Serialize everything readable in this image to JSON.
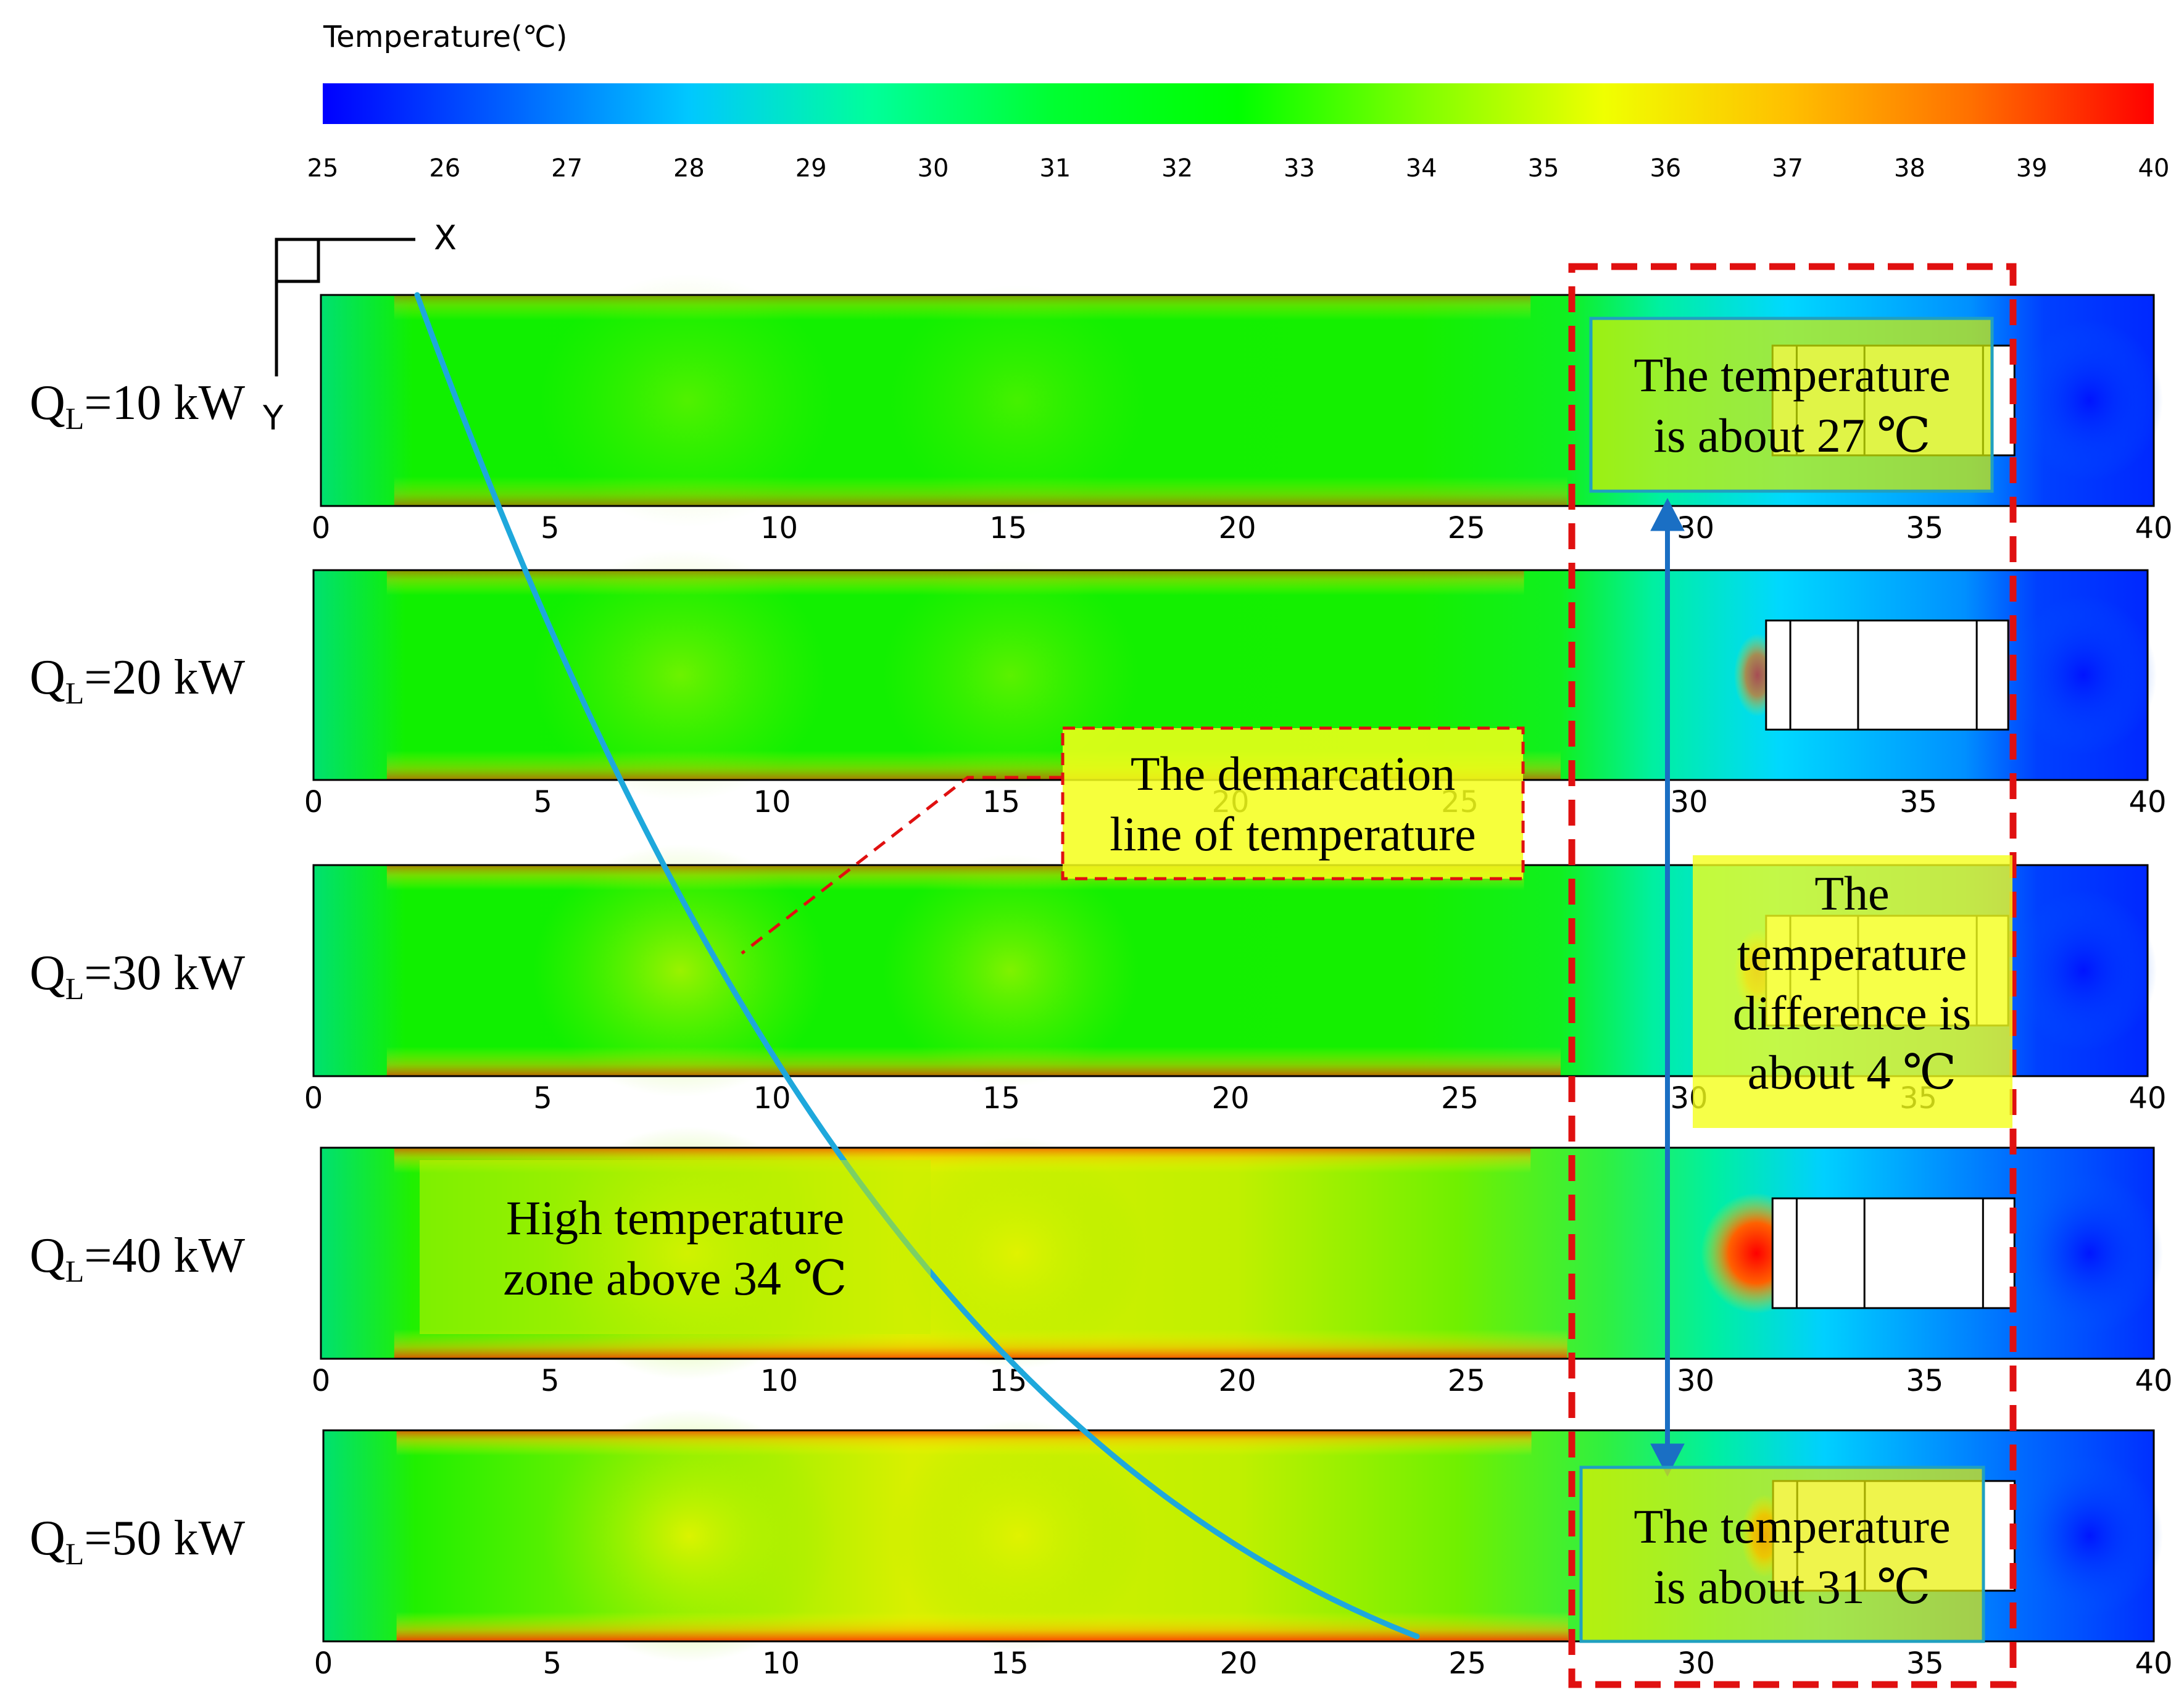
{
  "colorbar": {
    "title": "Temperature(℃)",
    "ticks": [
      "25",
      "26",
      "27",
      "28",
      "29",
      "30",
      "31",
      "32",
      "33",
      "34",
      "35",
      "36",
      "37",
      "38",
      "39",
      "40"
    ],
    "stops": [
      "#0000ff",
      "#0060ff",
      "#00c8ff",
      "#00ff9a",
      "#00ff30",
      "#00ff00",
      "#80ff00",
      "#f0ff00",
      "#ffc000",
      "#ff7000",
      "#ff0000"
    ]
  },
  "axes": {
    "x_label": "X",
    "y_label": "Y"
  },
  "x_axis_ticks": [
    "0",
    "5",
    "10",
    "15",
    "20",
    "25",
    "30",
    "35",
    "40"
  ],
  "panels": [
    {
      "q_main": "Q",
      "q_sub": "L",
      "q_rest": "=10 kW"
    },
    {
      "q_main": "Q",
      "q_sub": "L",
      "q_rest": "=20 kW"
    },
    {
      "q_main": "Q",
      "q_sub": "L",
      "q_rest": "=30 kW"
    },
    {
      "q_main": "Q",
      "q_sub": "L",
      "q_rest": "=40 kW"
    },
    {
      "q_main": "Q",
      "q_sub": "L",
      "q_rest": "=50 kW"
    }
  ],
  "annotations": {
    "temp_27": [
      "The temperature",
      "is about 27 ℃"
    ],
    "demarcation": [
      "The demarcation",
      "line of temperature"
    ],
    "difference": [
      "The",
      "temperature",
      "difference is",
      "about 4 ℃"
    ],
    "high_zone": [
      "High temperature",
      "zone above 34 ℃"
    ],
    "temp_31": [
      "The temperature",
      "is about 31 ℃"
    ]
  },
  "colors": {
    "demarcation_line": "#1ea8dc",
    "dashed_box": "#e01010",
    "double_arrow": "#1a6fc4",
    "annotation_fill": "#f4ff1a"
  }
}
